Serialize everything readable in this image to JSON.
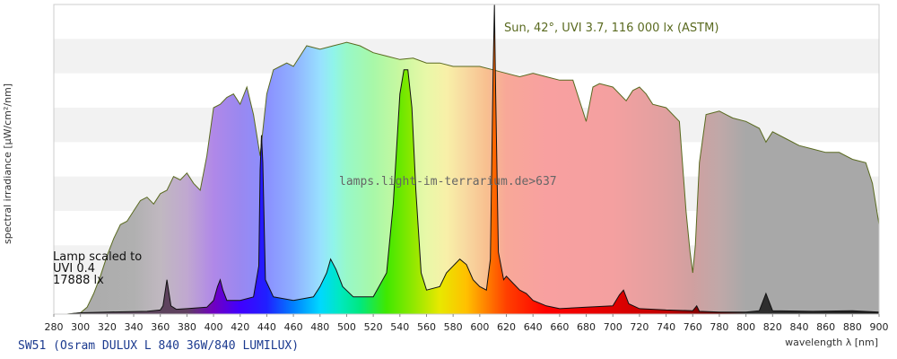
{
  "chart_data": {
    "type": "area",
    "xlabel": "wavelength λ [nm]",
    "ylabel": "spectral irradiance [μW/cm²/nm]",
    "xlim": [
      280,
      900
    ],
    "x_ticks": [
      280,
      300,
      320,
      340,
      360,
      380,
      400,
      420,
      440,
      460,
      480,
      500,
      520,
      540,
      560,
      580,
      600,
      620,
      640,
      660,
      680,
      700,
      720,
      740,
      760,
      780,
      800,
      820,
      840,
      860,
      880,
      900
    ],
    "ylim": [
      0,
      4.5
    ],
    "grid": "horizontal-bands",
    "series": [
      {
        "name": "Sun, 42°, UVI 3.7, 116 000 lx (ASTM)",
        "color": "#5a6a20",
        "x": [
          290,
          300,
          305,
          310,
          315,
          320,
          325,
          330,
          335,
          340,
          345,
          350,
          355,
          360,
          365,
          370,
          375,
          380,
          385,
          390,
          395,
          400,
          405,
          410,
          415,
          420,
          425,
          430,
          435,
          440,
          445,
          450,
          455,
          460,
          470,
          480,
          490,
          500,
          510,
          520,
          530,
          540,
          550,
          560,
          570,
          580,
          590,
          600,
          610,
          620,
          630,
          640,
          650,
          660,
          670,
          680,
          685,
          690,
          700,
          710,
          715,
          720,
          725,
          730,
          740,
          750,
          755,
          758,
          760,
          762,
          765,
          770,
          780,
          790,
          800,
          810,
          815,
          820,
          830,
          840,
          850,
          860,
          870,
          880,
          890,
          895,
          900
        ],
        "y": [
          0,
          0.02,
          0.1,
          0.3,
          0.55,
          0.85,
          1.1,
          1.3,
          1.35,
          1.5,
          1.65,
          1.7,
          1.6,
          1.75,
          1.8,
          2.0,
          1.95,
          2.05,
          1.9,
          1.8,
          2.3,
          3.0,
          3.05,
          3.15,
          3.2,
          3.05,
          3.3,
          2.9,
          2.3,
          3.2,
          3.55,
          3.6,
          3.65,
          3.6,
          3.9,
          3.85,
          3.9,
          3.95,
          3.9,
          3.8,
          3.75,
          3.7,
          3.72,
          3.65,
          3.65,
          3.6,
          3.6,
          3.6,
          3.55,
          3.5,
          3.45,
          3.5,
          3.45,
          3.4,
          3.4,
          2.8,
          3.3,
          3.35,
          3.3,
          3.1,
          3.25,
          3.3,
          3.2,
          3.05,
          3.0,
          2.8,
          1.5,
          0.9,
          0.6,
          1.0,
          2.2,
          2.9,
          2.95,
          2.85,
          2.8,
          2.7,
          2.5,
          2.65,
          2.55,
          2.45,
          2.4,
          2.35,
          2.35,
          2.25,
          2.2,
          1.9,
          1.3
        ]
      },
      {
        "name": "SW51 (Osram DULUX L 840 36W/840 LUMILUX)",
        "color": "#111111",
        "x": [
          290,
          300,
          320,
          350,
          360,
          362,
          365,
          368,
          372,
          380,
          395,
          400,
          403,
          405,
          407,
          410,
          420,
          430,
          434,
          435,
          436,
          437,
          439,
          445,
          460,
          475,
          480,
          485,
          488,
          492,
          497,
          505,
          520,
          530,
          535,
          540,
          543,
          546,
          549,
          552,
          556,
          560,
          570,
          575,
          580,
          585,
          590,
          595,
          600,
          605,
          608,
          610,
          611,
          612,
          614,
          618,
          620,
          625,
          630,
          635,
          640,
          650,
          660,
          680,
          700,
          705,
          708,
          712,
          720,
          740,
          760,
          763,
          765,
          780,
          800,
          810,
          815,
          820,
          850,
          880,
          900
        ],
        "y": [
          0,
          0.02,
          0.03,
          0.04,
          0.06,
          0.12,
          0.5,
          0.12,
          0.07,
          0.08,
          0.1,
          0.2,
          0.4,
          0.5,
          0.35,
          0.2,
          0.2,
          0.25,
          0.7,
          2.1,
          2.6,
          2.2,
          0.5,
          0.25,
          0.2,
          0.25,
          0.4,
          0.6,
          0.8,
          0.65,
          0.4,
          0.25,
          0.25,
          0.6,
          1.6,
          3.2,
          3.55,
          3.55,
          3.0,
          1.8,
          0.6,
          0.35,
          0.4,
          0.6,
          0.7,
          0.8,
          0.72,
          0.5,
          0.4,
          0.35,
          0.8,
          3.5,
          4.5,
          3.2,
          0.9,
          0.5,
          0.55,
          0.45,
          0.35,
          0.3,
          0.2,
          0.12,
          0.08,
          0.1,
          0.12,
          0.28,
          0.35,
          0.15,
          0.08,
          0.06,
          0.05,
          0.12,
          0.04,
          0.03,
          0.03,
          0.05,
          0.3,
          0.05,
          0.04,
          0.05,
          0.03
        ]
      }
    ],
    "annotations": {
      "sun_label": "Sun, 42°, UVI 3.7, 116 000 lx (ASTM)",
      "lamp_line1": "Lamp scaled to",
      "lamp_line2": "UVI 0.4",
      "lamp_line3": "17888 lx",
      "watermark": "lamps.light-im-terrarium.de>637"
    }
  },
  "footer": {
    "title": "SW51 (Osram DULUX L 840 36W/840 LUMILUX)"
  },
  "colors": {
    "plot_border": "#cccccc",
    "band": "#f2f2f2",
    "sun_line": "#5a6a20",
    "footer_text": "#1b3a8f"
  }
}
